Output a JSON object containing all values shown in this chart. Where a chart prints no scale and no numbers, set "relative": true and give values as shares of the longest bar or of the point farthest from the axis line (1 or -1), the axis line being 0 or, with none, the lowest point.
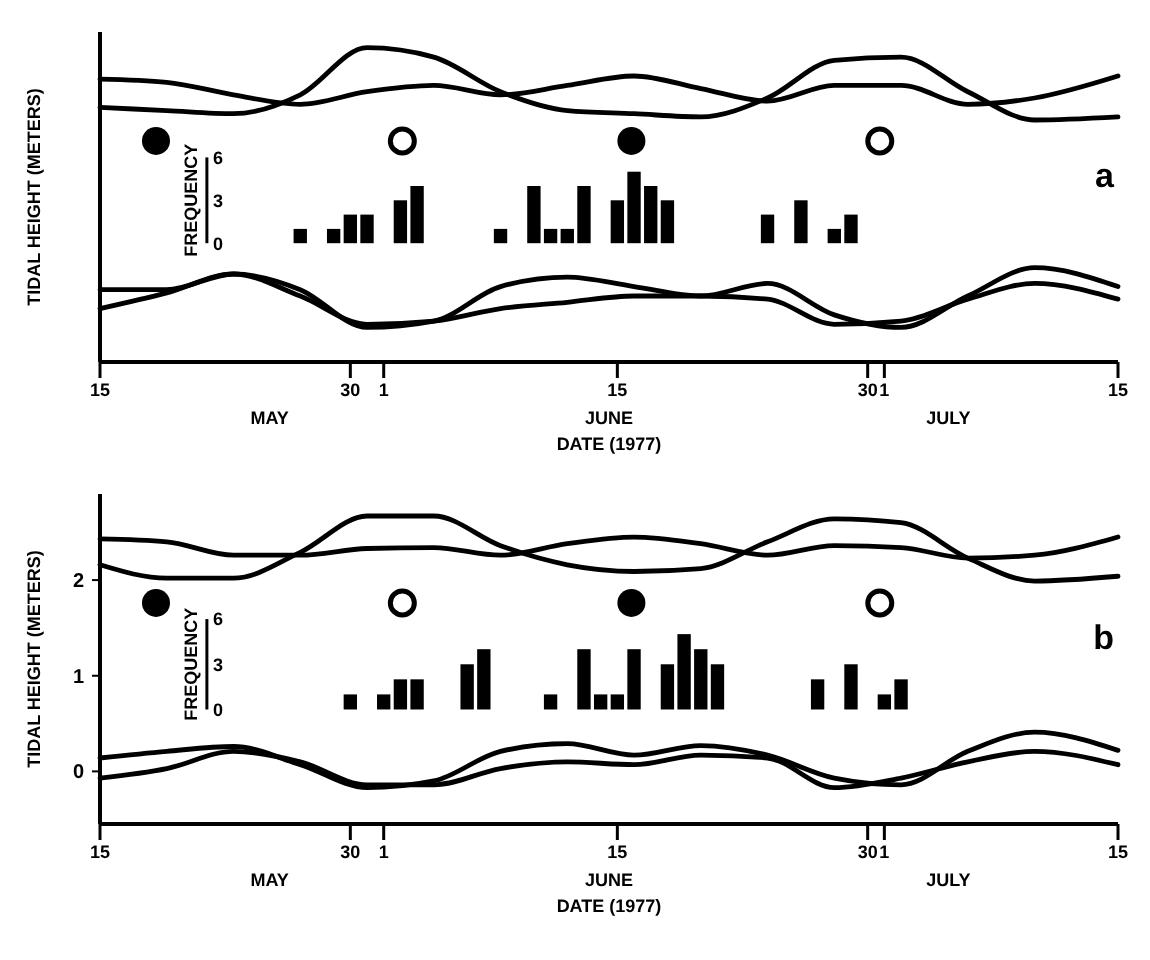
{
  "chart_data": [
    {
      "type": "line",
      "relative": true,
      "ylabel": "TIDAL HEIGHT (METERS)",
      "xlabel": "DATE (1977)",
      "annotations": [
        "a",
        "MAY",
        "JUNE",
        "JULY"
      ],
      "x": [
        "1977-05-15",
        "1977-05-19",
        "1977-05-23",
        "1977-05-27",
        "1977-05-31",
        "1977-06-04",
        "1977-06-08",
        "1977-06-12",
        "1977-06-16",
        "1977-06-20",
        "1977-06-24",
        "1977-06-28",
        "1977-07-02",
        "1977-07-06",
        "1977-07-10",
        "1977-07-15"
      ],
      "xlim": [
        "1977-05-15",
        "1977-07-15"
      ],
      "xticks": [
        {
          "value": "1977-05-15",
          "label": "15"
        },
        {
          "value": "1977-05-30",
          "label": "30"
        },
        {
          "value": "1977-06-01",
          "label": "1"
        },
        {
          "value": "1977-06-15",
          "label": "15"
        },
        {
          "value": "1977-06-30",
          "label": "30"
        },
        {
          "value": "1977-07-01",
          "label": "1"
        },
        {
          "value": "1977-07-15",
          "label": "15"
        }
      ],
      "series": [
        {
          "color": "#000000",
          "values": [
            0.81,
            0.8,
            0.79,
            0.85,
            1.0,
            0.97,
            0.86,
            0.8,
            0.79,
            0.78,
            0.84,
            0.96,
            0.97,
            0.86,
            0.77,
            0.78
          ]
        },
        {
          "color": "#000000",
          "values": [
            0.9,
            0.89,
            0.85,
            0.82,
            0.86,
            0.88,
            0.85,
            0.88,
            0.91,
            0.87,
            0.83,
            0.88,
            0.88,
            0.82,
            0.84,
            0.91
          ]
        },
        {
          "color": "#000000",
          "values": [
            0.23,
            0.23,
            0.28,
            0.23,
            0.11,
            0.13,
            0.24,
            0.27,
            0.24,
            0.21,
            0.25,
            0.15,
            0.11,
            0.21,
            0.3,
            0.24
          ]
        },
        {
          "color": "#000000",
          "values": [
            0.17,
            0.22,
            0.28,
            0.21,
            0.12,
            0.13,
            0.17,
            0.19,
            0.21,
            0.21,
            0.2,
            0.12,
            0.13,
            0.2,
            0.25,
            0.2
          ]
        }
      ]
    },
    {
      "type": "bar",
      "ylabel": "FREQUENCY",
      "tick_labels": "y",
      "x": [
        "1977-05-27",
        "1977-05-29",
        "1977-05-30",
        "1977-05-31",
        "1977-06-02",
        "1977-06-03",
        "1977-06-08",
        "1977-06-10",
        "1977-06-11",
        "1977-06-12",
        "1977-06-13",
        "1977-06-15",
        "1977-06-16",
        "1977-06-17",
        "1977-06-18",
        "1977-06-24",
        "1977-06-26",
        "1977-06-28",
        "1977-06-29"
      ],
      "xlim": [
        "1977-05-15",
        "1977-07-15"
      ],
      "ylim": [
        0,
        6
      ],
      "yticks": [
        0,
        3,
        6
      ],
      "series": [
        {
          "color": "#000000",
          "values": [
            1,
            1,
            2,
            2,
            3,
            4,
            1,
            4,
            1,
            1,
            4,
            3,
            5,
            4,
            3,
            2,
            3,
            1,
            2
          ]
        }
      ]
    },
    {
      "type": "line",
      "ylabel": "TIDAL HEIGHT (METERS)",
      "xlabel": "DATE (1977)",
      "y2label": "FREQUENCY",
      "annotations": [
        "b",
        "MAY",
        "JUNE",
        "JULY"
      ],
      "x": [
        "1977-05-15",
        "1977-05-19",
        "1977-05-23",
        "1977-05-27",
        "1977-05-31",
        "1977-06-04",
        "1977-06-08",
        "1977-06-12",
        "1977-06-16",
        "1977-06-20",
        "1977-06-24",
        "1977-06-28",
        "1977-07-02",
        "1977-07-06",
        "1977-07-10",
        "1977-07-15"
      ],
      "xlim": [
        "1977-05-15",
        "1977-07-15"
      ],
      "xticks": [
        {
          "value": "1977-05-15",
          "label": "15"
        },
        {
          "value": "1977-05-30",
          "label": "30"
        },
        {
          "value": "1977-06-01",
          "label": "1"
        },
        {
          "value": "1977-06-15",
          "label": "15"
        },
        {
          "value": "1977-06-30",
          "label": "30"
        },
        {
          "value": "1977-07-01",
          "label": "1"
        },
        {
          "value": "1977-07-15",
          "label": "15"
        }
      ],
      "ylim": [
        -0.55,
        2.9
      ],
      "yticks": [
        0,
        1,
        2
      ],
      "y2lim": [
        -7.6,
        14.3
      ],
      "y2ticks": [
        0,
        3,
        6
      ],
      "series": [
        {
          "color": "#000000",
          "values": [
            2.16,
            2.02,
            2.02,
            2.29,
            2.67,
            2.67,
            2.36,
            2.16,
            2.09,
            2.12,
            2.4,
            2.64,
            2.6,
            2.23,
            1.99,
            2.04
          ]
        },
        {
          "color": "#000000",
          "values": [
            2.43,
            2.4,
            2.26,
            2.26,
            2.33,
            2.34,
            2.26,
            2.38,
            2.45,
            2.38,
            2.26,
            2.36,
            2.34,
            2.23,
            2.26,
            2.45
          ]
        },
        {
          "color": "#000000",
          "values": [
            0.14,
            0.21,
            0.26,
            0.07,
            -0.17,
            -0.1,
            0.21,
            0.29,
            0.17,
            0.27,
            0.17,
            -0.07,
            -0.14,
            0.21,
            0.41,
            0.22
          ]
        },
        {
          "color": "#000000",
          "values": [
            -0.07,
            0.03,
            0.21,
            0.1,
            -0.14,
            -0.14,
            0.03,
            0.1,
            0.07,
            0.17,
            0.14,
            -0.17,
            -0.07,
            0.1,
            0.21,
            0.07
          ]
        },
        {
          "type": "bar",
          "axis": "y2",
          "color": "#000000",
          "x": [
            "1977-05-30",
            "1977-06-01",
            "1977-06-02",
            "1977-06-03",
            "1977-06-06",
            "1977-06-07",
            "1977-06-11",
            "1977-06-13",
            "1977-06-14",
            "1977-06-15",
            "1977-06-16",
            "1977-06-18",
            "1977-06-19",
            "1977-06-20",
            "1977-06-21",
            "1977-06-27",
            "1977-06-29",
            "1977-07-01",
            "1977-07-02"
          ],
          "values": [
            1,
            1,
            2,
            2,
            3,
            4,
            1,
            4,
            1,
            1,
            4,
            3,
            5,
            4,
            3,
            2,
            3,
            1,
            2
          ]
        }
      ]
    }
  ]
}
